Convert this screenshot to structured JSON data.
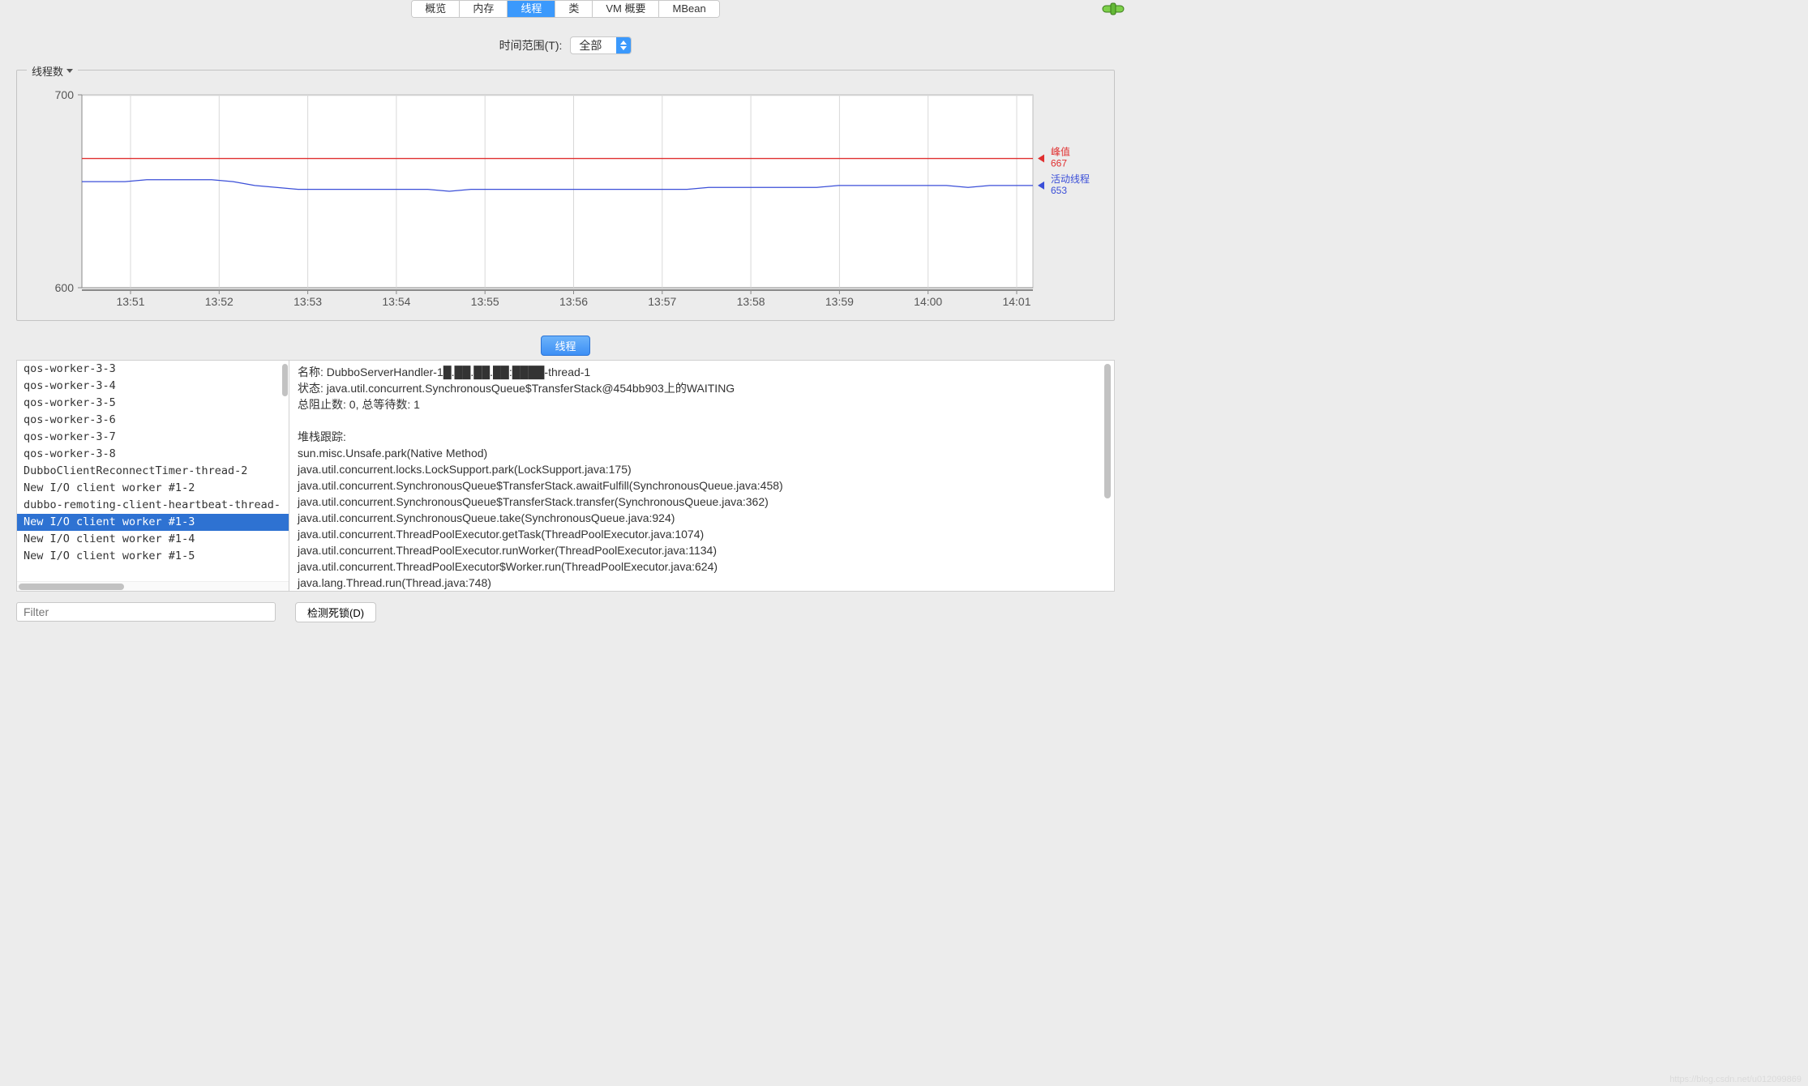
{
  "tabs": {
    "items": [
      "概览",
      "内存",
      "线程",
      "类",
      "VM 概要",
      "MBean"
    ],
    "active_index": 2
  },
  "time_range": {
    "label": "时间范围(T):",
    "value": "全部"
  },
  "chart": {
    "title": "线程数",
    "type": "line",
    "ylim": [
      600,
      700
    ],
    "yticks": [
      600,
      700
    ],
    "x_labels": [
      "13:51",
      "13:52",
      "13:53",
      "13:54",
      "13:55",
      "13:56",
      "13:57",
      "13:58",
      "13:59",
      "14:00",
      "14:01"
    ],
    "background_color": "#ffffff",
    "axis_color": "#888888",
    "grid_color": "#d8d8d8",
    "series": [
      {
        "name": "峰值",
        "color": "#e03030",
        "legend_value": "667",
        "y_values": [
          667,
          667,
          667,
          667,
          667,
          667,
          667,
          667,
          667,
          667,
          667,
          667,
          667,
          667,
          667,
          667,
          667,
          667,
          667,
          667,
          667,
          667,
          667,
          667,
          667,
          667,
          667,
          667,
          667,
          667,
          667,
          667,
          667,
          667,
          667,
          667,
          667,
          667,
          667,
          667,
          667,
          667,
          667,
          667,
          667
        ]
      },
      {
        "name": "活动线程",
        "color": "#3b4fd8",
        "legend_value": "653",
        "y_values": [
          655,
          655,
          655,
          656,
          656,
          656,
          656,
          655,
          653,
          652,
          651,
          651,
          651,
          651,
          651,
          651,
          651,
          650,
          651,
          651,
          651,
          651,
          651,
          651,
          651,
          651,
          651,
          651,
          651,
          652,
          652,
          652,
          652,
          652,
          652,
          653,
          653,
          653,
          653,
          653,
          653,
          652,
          653,
          653,
          653
        ]
      }
    ]
  },
  "thread_button": "线程",
  "thread_list": {
    "items": [
      "qos-worker-3-3",
      "qos-worker-3-4",
      "qos-worker-3-5",
      "qos-worker-3-6",
      "qos-worker-3-7",
      "qos-worker-3-8",
      "DubboClientReconnectTimer-thread-2",
      "New I/O client worker #1-2",
      "dubbo-remoting-client-heartbeat-thread-",
      "New I/O client worker #1-3",
      "New I/O client worker #1-4",
      "New I/O client worker #1-5"
    ],
    "selected_index": 9
  },
  "detail": {
    "name_label": "名称: ",
    "name_value": "DubboServerHandler-1█.██.██.██:████-thread-1",
    "state_label": "状态: ",
    "state_value": "java.util.concurrent.SynchronousQueue$TransferStack@454bb903上的WAITING",
    "blocked_label": "总阻止数: ",
    "blocked_value": "0, ",
    "waited_label": "总等待数: ",
    "waited_value": "1",
    "stack_label": "堆栈跟踪:",
    "stack_lines": [
      "sun.misc.Unsafe.park(Native Method)",
      "java.util.concurrent.locks.LockSupport.park(LockSupport.java:175)",
      "java.util.concurrent.SynchronousQueue$TransferStack.awaitFulfill(SynchronousQueue.java:458)",
      "java.util.concurrent.SynchronousQueue$TransferStack.transfer(SynchronousQueue.java:362)",
      "java.util.concurrent.SynchronousQueue.take(SynchronousQueue.java:924)",
      "java.util.concurrent.ThreadPoolExecutor.getTask(ThreadPoolExecutor.java:1074)",
      "java.util.concurrent.ThreadPoolExecutor.runWorker(ThreadPoolExecutor.java:1134)",
      "java.util.concurrent.ThreadPoolExecutor$Worker.run(ThreadPoolExecutor.java:624)",
      "java.lang.Thread.run(Thread.java:748)"
    ]
  },
  "filter": {
    "placeholder": "Filter"
  },
  "deadlock_btn": "检测死锁(D)",
  "credit": "https://blog.csdn.net/u012099869"
}
